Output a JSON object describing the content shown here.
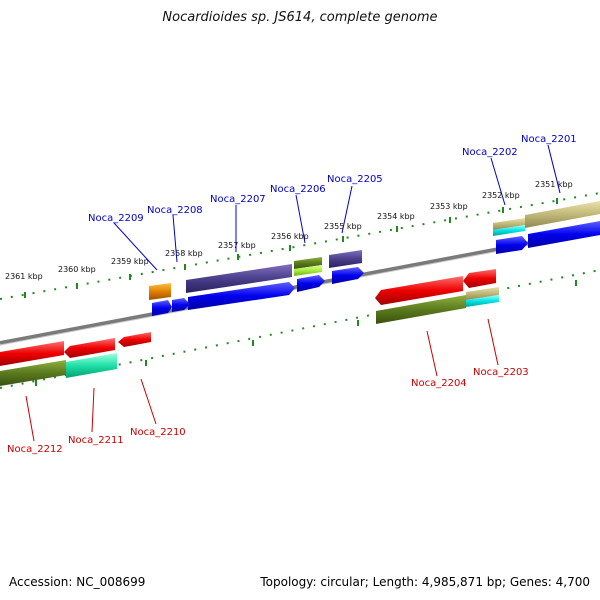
{
  "title": "Nocardioides sp. JS614, complete genome",
  "accession": "Accession: NC_008699",
  "summary": "Topology: circular; Length: 4,985,871 bp; Genes: 4,700",
  "tick_labels": [
    "2351 kbp",
    "2352 kbp",
    "2353 kbp",
    "2354 kbp",
    "2355 kbp",
    "2356 kbp",
    "2357 kbp",
    "2358 kbp",
    "2359 kbp",
    "2360 kbp",
    "2361 kbp"
  ],
  "forward_genes": [
    {
      "id": "Noca_2201",
      "color": "#0000cc"
    },
    {
      "id": "Noca_2202",
      "color": "#0000cc"
    },
    {
      "id": "Noca_2205",
      "color": "#0000cc"
    },
    {
      "id": "Noca_2206",
      "color": "#0000cc"
    },
    {
      "id": "Noca_2207",
      "color": "#0000cc"
    },
    {
      "id": "Noca_2208",
      "color": "#0000cc"
    },
    {
      "id": "Noca_2209",
      "color": "#0000cc"
    }
  ],
  "reverse_genes": [
    {
      "id": "Noca_2203",
      "color": "#cc0000"
    },
    {
      "id": "Noca_2204",
      "color": "#cc0000"
    },
    {
      "id": "Noca_2210",
      "color": "#cc0000"
    },
    {
      "id": "Noca_2211",
      "color": "#cc0000"
    },
    {
      "id": "Noca_2212",
      "color": "#cc0000"
    }
  ],
  "colors": {
    "forward_cds": "#0000ee",
    "reverse_cds": "#ee0000",
    "backbone": "#808080",
    "ticks": "#228822",
    "olive": "#5a7a1e",
    "khaki": "#c8c080",
    "slate": "#4a3f8a",
    "cyan": "#00e5e5",
    "orange": "#e08000",
    "teal": "#00d8a0"
  }
}
